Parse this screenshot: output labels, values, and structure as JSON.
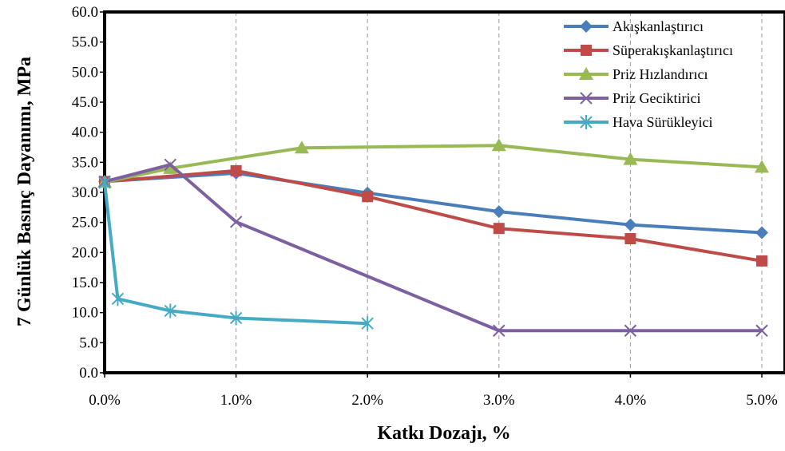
{
  "chart_data": {
    "type": "line",
    "xlabel": "Katkı Dozajı, %",
    "ylabel": "7 Günlük Basınç Dayanımı, MPa",
    "xlim": [
      0,
      5
    ],
    "ylim": [
      0,
      60
    ],
    "x_ticks": [
      0,
      1,
      2,
      3,
      4,
      5
    ],
    "x_tick_labels": [
      "0.0%",
      "1.0%",
      "2.0%",
      "3.0%",
      "4.0%",
      "5.0%"
    ],
    "y_ticks": [
      0,
      5,
      10,
      15,
      20,
      25,
      30,
      35,
      40,
      45,
      50,
      55,
      60
    ],
    "y_tick_labels": [
      "0.0",
      "5.0",
      "10.0",
      "15.0",
      "20.0",
      "25.0",
      "30.0",
      "35.0",
      "40.0",
      "45.0",
      "50.0",
      "55.0",
      "60.0"
    ],
    "grid": "vertical dashed",
    "legend_position": "top-right",
    "series": [
      {
        "name": "Akışkanlaştırıcı",
        "color": "#4A7EBB",
        "marker": "diamond",
        "x": [
          0,
          1,
          2,
          3,
          4,
          5
        ],
        "y": [
          31.8,
          33.2,
          29.9,
          26.8,
          24.6,
          23.3
        ]
      },
      {
        "name": "Süperakışkanlaştırıcı",
        "color": "#BE4B48",
        "marker": "square",
        "x": [
          0,
          1,
          2,
          3,
          4,
          5
        ],
        "y": [
          31.8,
          33.6,
          29.3,
          24.0,
          22.3,
          18.6
        ]
      },
      {
        "name": "Priz Hızlandırıcı",
        "color": "#98B954",
        "marker": "triangle",
        "x": [
          0,
          0.5,
          1.5,
          3,
          4,
          5
        ],
        "y": [
          31.7,
          34.0,
          37.4,
          37.8,
          35.5,
          34.2
        ]
      },
      {
        "name": "Priz Geciktirici",
        "color": "#7D60A0",
        "marker": "x",
        "x": [
          0,
          0.5,
          1,
          3,
          4,
          5
        ],
        "y": [
          31.8,
          34.6,
          25.1,
          7.0,
          7.0,
          7.0
        ]
      },
      {
        "name": "Hava Sürükleyici",
        "color": "#46AAC5",
        "marker": "asterisk",
        "x": [
          0,
          0.1,
          0.5,
          1,
          2
        ],
        "y": [
          31.6,
          12.3,
          10.3,
          9.1,
          8.2
        ]
      }
    ]
  }
}
